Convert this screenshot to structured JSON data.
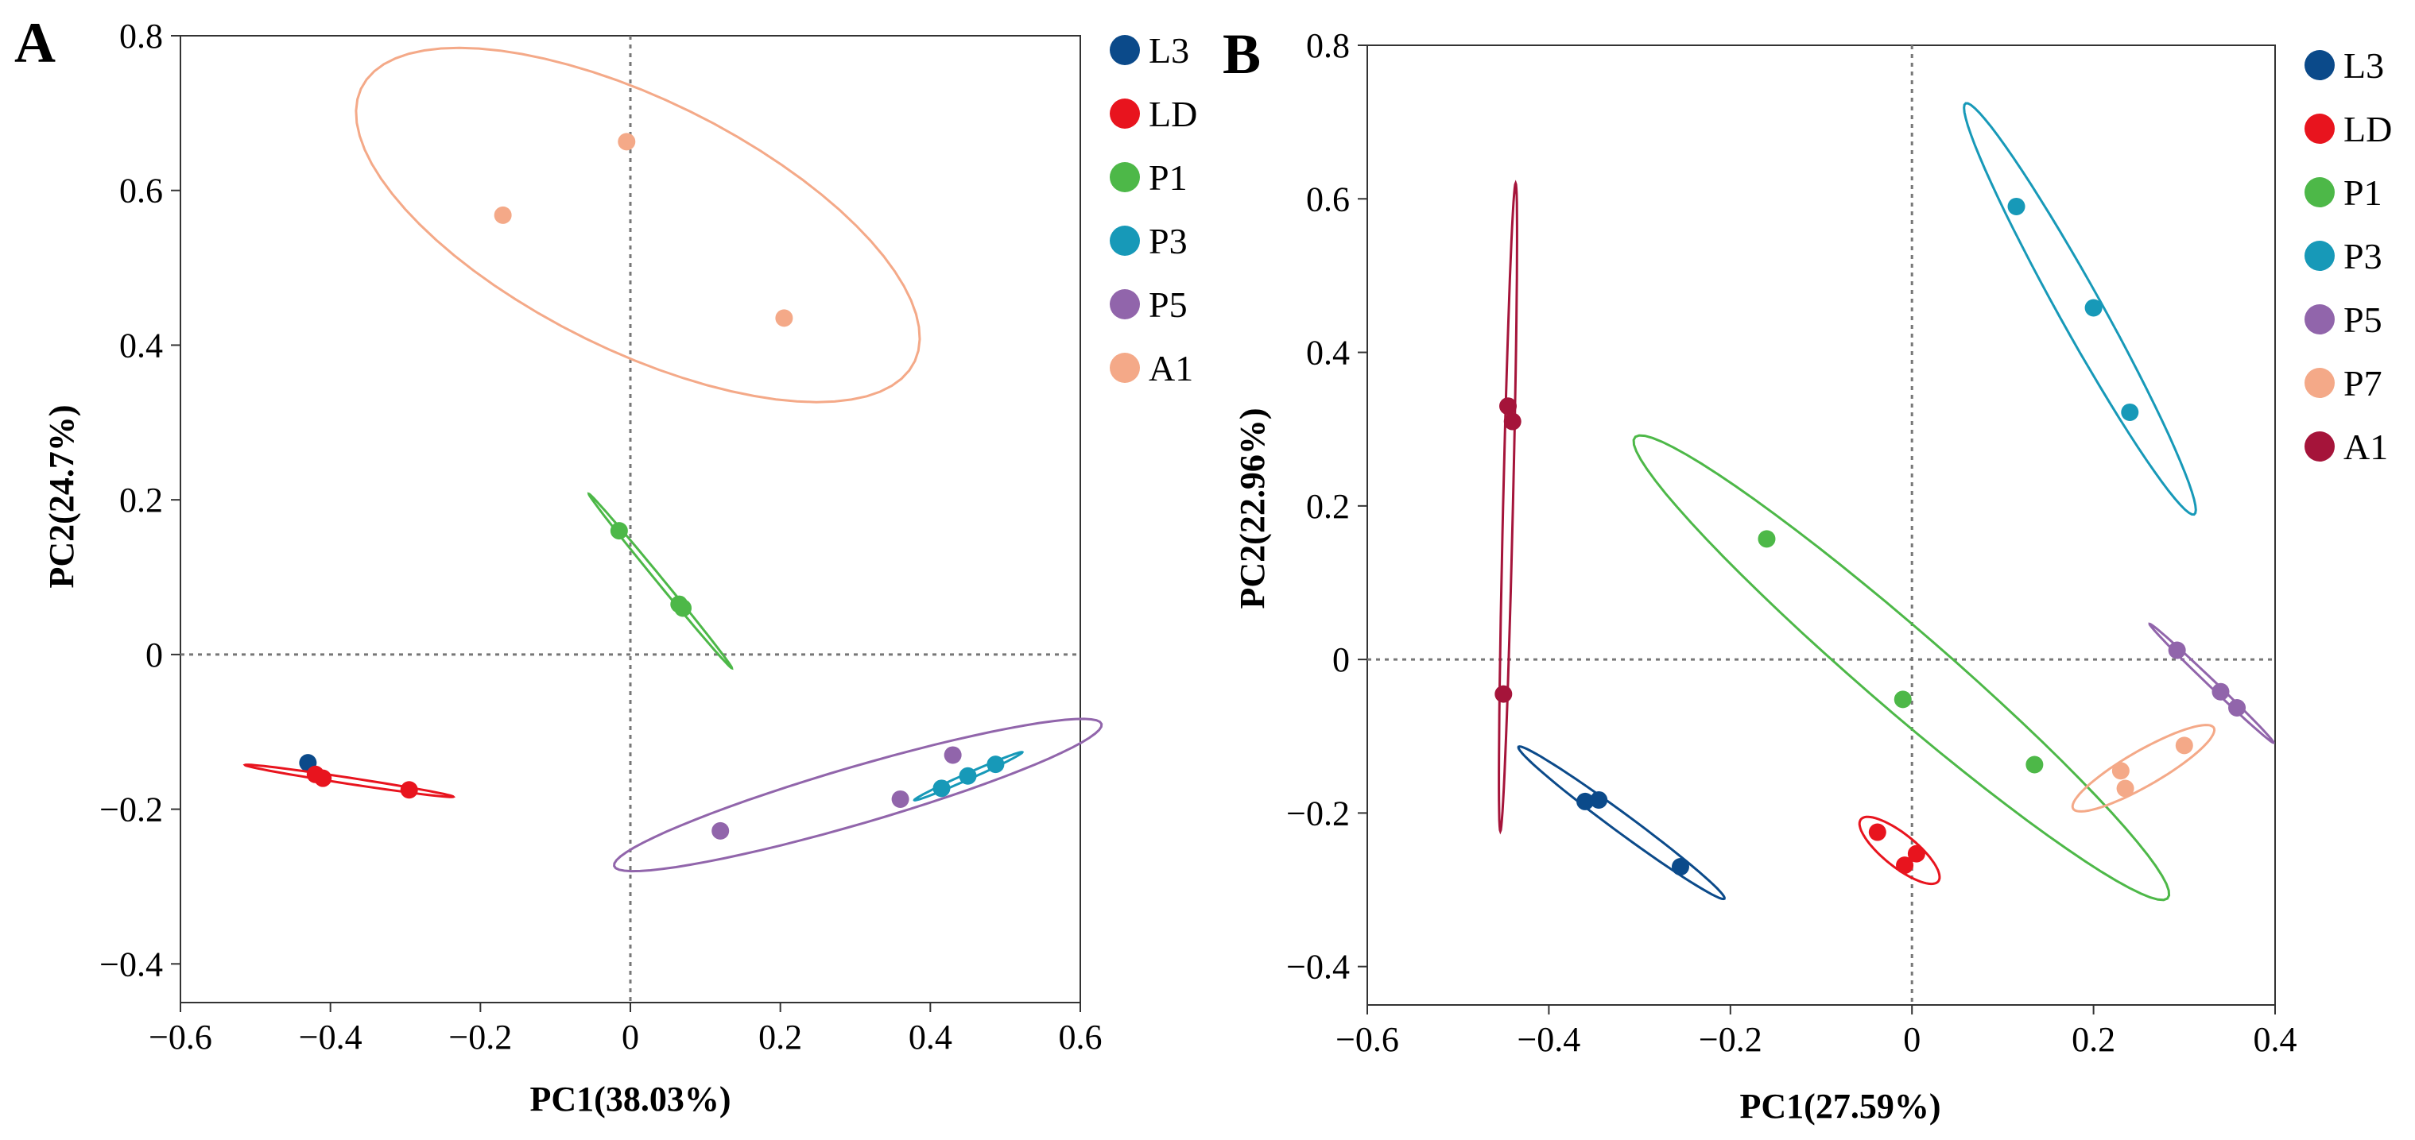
{
  "panels": [
    {
      "label": "A",
      "xlabel": "PC1(38.03%)",
      "ylabel": "PC2(24.7%)"
    },
    {
      "label": "B",
      "xlabel": "PC1(27.59%)",
      "ylabel": "PC2(22.96%)"
    }
  ],
  "chart_data": [
    {
      "type": "scatter",
      "title": "",
      "xlabel": "PC1(38.03%)",
      "ylabel": "PC2(24.7%)",
      "xlim": [
        -0.6,
        0.6
      ],
      "ylim": [
        -0.45,
        0.8
      ],
      "xticks": [
        -0.6,
        -0.4,
        -0.2,
        0,
        0.2,
        0.4,
        0.6
      ],
      "xtick_labels": [
        "−0.6",
        "−0.4",
        "−0.2",
        "0",
        "0.2",
        "0.4",
        "0.6"
      ],
      "yticks": [
        -0.4,
        -0.2,
        0,
        0.2,
        0.4,
        0.6,
        0.8
      ],
      "ytick_labels": [
        "−0.4",
        "−0.2",
        "0",
        "0.2",
        "0.4",
        "0.6",
        "0.8"
      ],
      "reference_lines": {
        "x": 0,
        "y": 0
      },
      "legend_position": "right",
      "series": [
        {
          "name": "L3",
          "color": "#0b4a8a",
          "points": [
            [
              -0.43,
              -0.14
            ]
          ]
        },
        {
          "name": "LD",
          "color": "#e8141e",
          "points": [
            [
              -0.42,
              -0.155
            ],
            [
              -0.41,
              -0.16
            ],
            [
              -0.295,
              -0.175
            ]
          ]
        },
        {
          "name": "P1",
          "color": "#4db848",
          "points": [
            [
              -0.015,
              0.16
            ],
            [
              0.065,
              0.065
            ],
            [
              0.07,
              0.06
            ]
          ]
        },
        {
          "name": "P3",
          "color": "#1799b8",
          "points": [
            [
              0.415,
              -0.173
            ],
            [
              0.45,
              -0.157
            ],
            [
              0.487,
              -0.142
            ]
          ]
        },
        {
          "name": "P5",
          "color": "#9165ab",
          "points": [
            [
              0.12,
              -0.228
            ],
            [
              0.36,
              -0.187
            ],
            [
              0.43,
              -0.13
            ]
          ]
        },
        {
          "name": "A1",
          "color": "#f4a988",
          "points": [
            [
              -0.005,
              0.663
            ],
            [
              -0.17,
              0.568
            ],
            [
              0.205,
              0.435
            ]
          ]
        }
      ]
    },
    {
      "type": "scatter",
      "title": "",
      "xlabel": "PC1(27.59%)",
      "ylabel": "PC2(22.96%)",
      "xlim": [
        -0.6,
        0.4
      ],
      "ylim": [
        -0.45,
        0.8
      ],
      "xticks": [
        -0.6,
        -0.4,
        -0.2,
        0,
        0.2,
        0.4
      ],
      "xtick_labels": [
        "−0.6",
        "−0.4",
        "−0.2",
        "0",
        "0.2",
        "0.4"
      ],
      "yticks": [
        -0.4,
        -0.2,
        0,
        0.2,
        0.4,
        0.6,
        0.8
      ],
      "ytick_labels": [
        "−0.4",
        "−0.2",
        "0",
        "0.2",
        "0.4",
        "0.6",
        "0.8"
      ],
      "reference_lines": {
        "x": 0,
        "y": 0
      },
      "legend_position": "right",
      "series": [
        {
          "name": "L3",
          "color": "#0b4a8a",
          "points": [
            [
              -0.36,
              -0.185
            ],
            [
              -0.345,
              -0.183
            ],
            [
              -0.255,
              -0.27
            ]
          ]
        },
        {
          "name": "LD",
          "color": "#e8141e",
          "points": [
            [
              -0.038,
              -0.225
            ],
            [
              -0.008,
              -0.268
            ],
            [
              0.005,
              -0.253
            ]
          ]
        },
        {
          "name": "P1",
          "color": "#4db848",
          "points": [
            [
              -0.16,
              0.157
            ],
            [
              -0.01,
              -0.052
            ],
            [
              0.135,
              -0.137
            ]
          ]
        },
        {
          "name": "P3",
          "color": "#1799b8",
          "points": [
            [
              0.115,
              0.59
            ],
            [
              0.2,
              0.458
            ],
            [
              0.24,
              0.322
            ]
          ]
        },
        {
          "name": "P5",
          "color": "#9165ab",
          "points": [
            [
              0.292,
              0.012
            ],
            [
              0.34,
              -0.042
            ],
            [
              0.358,
              -0.063
            ]
          ]
        },
        {
          "name": "P7",
          "color": "#f4a988",
          "points": [
            [
              0.23,
              -0.145
            ],
            [
              0.235,
              -0.168
            ],
            [
              0.3,
              -0.112
            ]
          ]
        },
        {
          "name": "A1",
          "color": "#a5143a",
          "points": [
            [
              -0.445,
              0.33
            ],
            [
              -0.44,
              0.31
            ],
            [
              -0.45,
              -0.045
            ]
          ]
        }
      ]
    }
  ]
}
